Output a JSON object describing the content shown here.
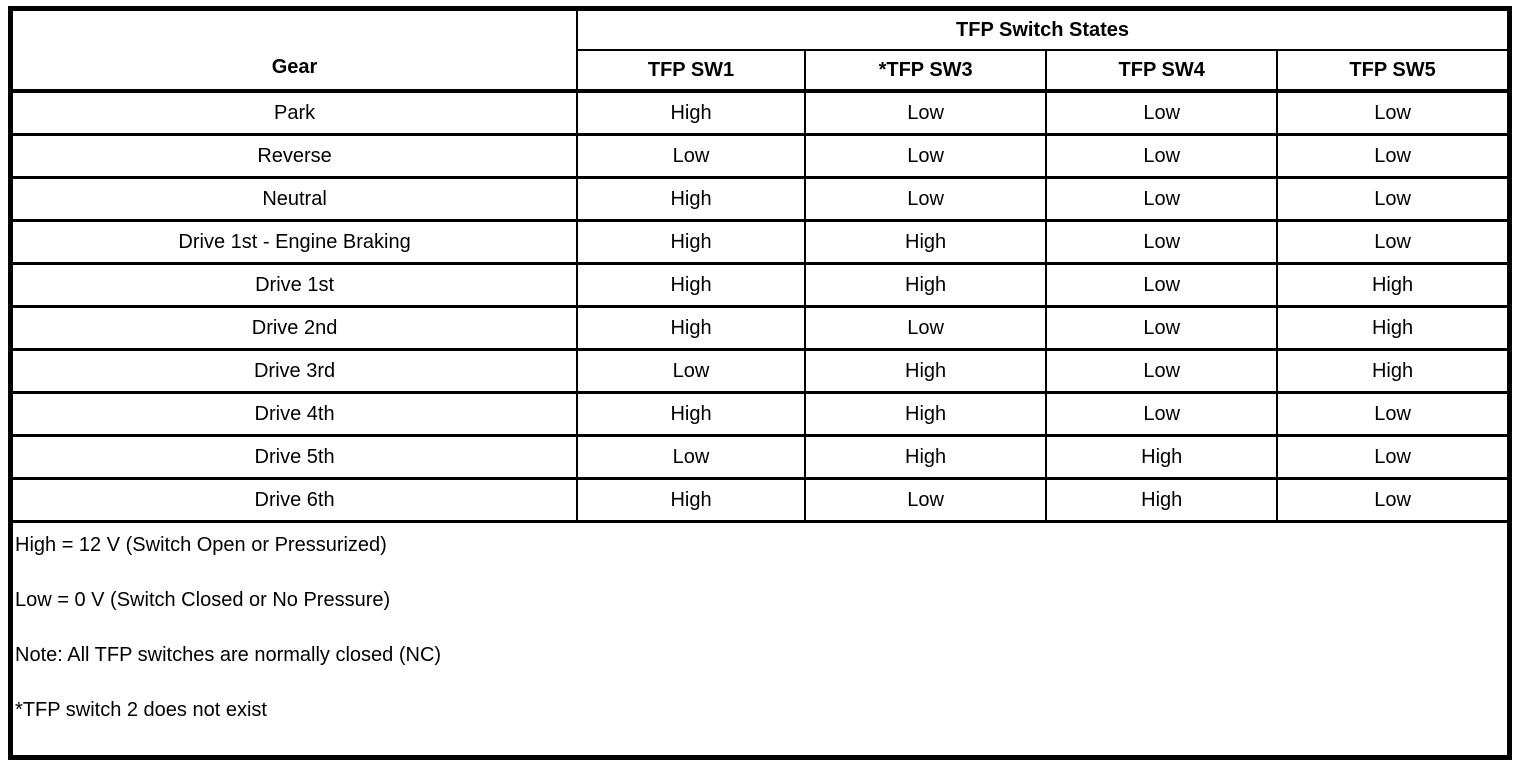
{
  "table": {
    "title": "TFP Switch States",
    "gear_header": "Gear",
    "switch_columns": [
      "TFP SW1",
      "*TFP SW3",
      "TFP SW4",
      "TFP SW5"
    ],
    "rows": [
      {
        "gear": "Park",
        "states": [
          "High",
          "Low",
          "Low",
          "Low"
        ]
      },
      {
        "gear": "Reverse",
        "states": [
          "Low",
          "Low",
          "Low",
          "Low"
        ]
      },
      {
        "gear": "Neutral",
        "states": [
          "High",
          "Low",
          "Low",
          "Low"
        ]
      },
      {
        "gear": "Drive 1st - Engine Braking",
        "states": [
          "High",
          "High",
          "Low",
          "Low"
        ]
      },
      {
        "gear": "Drive 1st",
        "states": [
          "High",
          "High",
          "Low",
          "High"
        ]
      },
      {
        "gear": "Drive 2nd",
        "states": [
          "High",
          "Low",
          "Low",
          "High"
        ]
      },
      {
        "gear": "Drive 3rd",
        "states": [
          "Low",
          "High",
          "Low",
          "High"
        ]
      },
      {
        "gear": "Drive 4th",
        "states": [
          "High",
          "High",
          "Low",
          "Low"
        ]
      },
      {
        "gear": "Drive 5th",
        "states": [
          "Low",
          "High",
          "High",
          "Low"
        ]
      },
      {
        "gear": "Drive 6th",
        "states": [
          "High",
          "Low",
          "High",
          "Low"
        ]
      }
    ],
    "notes": [
      "High = 12 V (Switch Open or Pressurized)",
      "Low = 0 V (Switch Closed or No Pressure)",
      "Note: All TFP switches are normally closed (NC)",
      "*TFP switch 2 does not exist"
    ]
  },
  "colors": {
    "border": "#000000",
    "background": "#ffffff",
    "text": "#000000"
  }
}
